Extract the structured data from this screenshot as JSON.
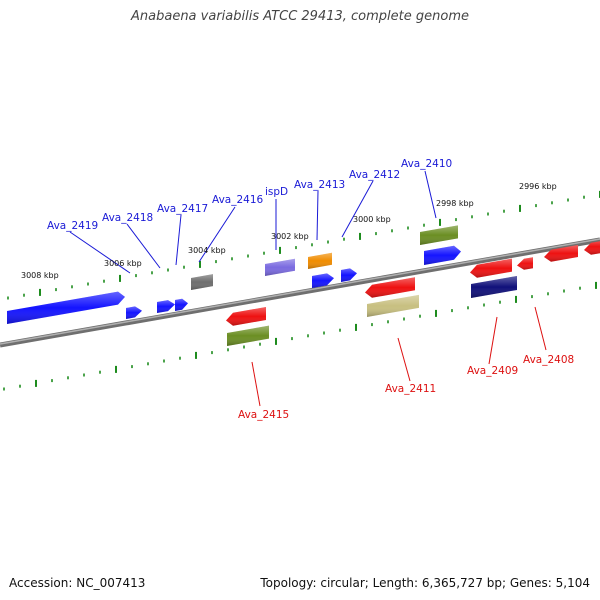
{
  "title": "Anabaena variabilis ATCC 29413, complete genome",
  "footer": {
    "accession": "Accession: NC_007413",
    "summary": "Topology: circular; Length: 6,365,727 bp; Genes: 5,104"
  },
  "colors": {
    "backbone": "#8a8a8a",
    "tick": "#1e8c1e",
    "forward_label": "#1a1ad6",
    "reverse_label": "#dd1111"
  },
  "scale_labels": [
    "2996 kbp",
    "2998 kbp",
    "3000 kbp",
    "3002 kbp",
    "3004 kbp",
    "3006 kbp",
    "3008 kbp"
  ],
  "forward_labels": [
    "Ava_2419",
    "Ava_2418",
    "Ava_2417",
    "Ava_2416",
    "ispD",
    "Ava_2413",
    "Ava_2412",
    "Ava_2410"
  ],
  "reverse_labels": [
    "Ava_2415",
    "Ava_2411",
    "Ava_2409",
    "Ava_2408"
  ],
  "features": [
    {
      "name": "Ava_2419",
      "strand": "forward",
      "color": "#1414ff",
      "shape": "gene-arrow"
    },
    {
      "name": "Ava_2418",
      "strand": "forward",
      "color": "#1414ff",
      "shape": "gene-arrow"
    },
    {
      "name": "Ava_2417",
      "strand": "forward",
      "color": "#1414ff",
      "shape": "gene-arrow"
    },
    {
      "name": "Ava_2416",
      "strand": "forward",
      "color": "#1414ff",
      "shape": "gene-arrow"
    },
    {
      "name": "grey-feature",
      "strand": "forward",
      "color": "#6e6e6e",
      "shape": "box"
    },
    {
      "name": "ispD",
      "strand": "forward",
      "color": "#7a6ae0",
      "shape": "box"
    },
    {
      "name": "orange-feature",
      "strand": "forward",
      "color": "#f08c00",
      "shape": "box"
    },
    {
      "name": "Ava_2413",
      "strand": "forward",
      "color": "#1414ff",
      "shape": "gene-arrow"
    },
    {
      "name": "Ava_2412",
      "strand": "forward",
      "color": "#1414ff",
      "shape": "gene-arrow"
    },
    {
      "name": "olive-feature",
      "strand": "forward",
      "color": "#6b8e23",
      "shape": "box"
    },
    {
      "name": "Ava_2410",
      "strand": "forward",
      "color": "#1414ff",
      "shape": "gene-arrow"
    },
    {
      "name": "Ava_2415",
      "strand": "reverse",
      "color": "#ee1111",
      "shape": "gene-arrow"
    },
    {
      "name": "olive-feature-2",
      "strand": "reverse",
      "color": "#6b8e23",
      "shape": "box"
    },
    {
      "name": "Ava_2411",
      "strand": "reverse",
      "color": "#ee1111",
      "shape": "gene-arrow"
    },
    {
      "name": "khaki-feature",
      "strand": "reverse",
      "color": "#c8c080",
      "shape": "box"
    },
    {
      "name": "Ava_2409",
      "strand": "reverse",
      "color": "#ee1111",
      "shape": "gene-arrow"
    },
    {
      "name": "navy-feature",
      "strand": "reverse",
      "color": "#10107a",
      "shape": "box"
    },
    {
      "name": "Ava_2408",
      "strand": "reverse",
      "color": "#ee1111",
      "shape": "gene-arrow"
    }
  ]
}
